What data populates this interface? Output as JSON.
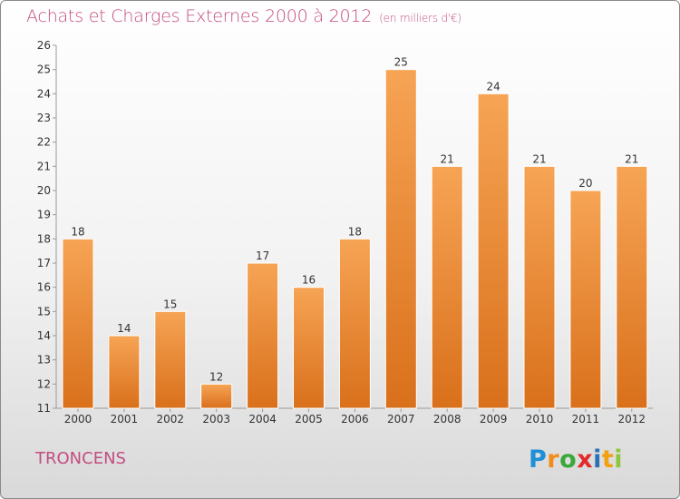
{
  "title": "Achats et Charges Externes 2000 à 2012",
  "unit": "(en milliers d'€)",
  "city": "TRONCENS",
  "logo": "Proxiti",
  "colors": {
    "bar_top": "#f6a455",
    "bar_bottom": "#d9701b",
    "title": "#c24d80"
  },
  "chart_data": {
    "type": "bar",
    "title": "Achats et Charges Externes 2000 à 2012",
    "xlabel": "",
    "ylabel": "",
    "ylim": [
      11,
      26
    ],
    "yticks": [
      11,
      12,
      13,
      14,
      15,
      16,
      17,
      18,
      19,
      20,
      21,
      22,
      23,
      24,
      25,
      26
    ],
    "categories": [
      "2000",
      "2001",
      "2002",
      "2003",
      "2004",
      "2005",
      "2006",
      "2007",
      "2008",
      "2009",
      "2010",
      "2011",
      "2012"
    ],
    "values": [
      18,
      14,
      15,
      12,
      17,
      16,
      18,
      25,
      21,
      24,
      21,
      20,
      21
    ],
    "grid": false
  }
}
